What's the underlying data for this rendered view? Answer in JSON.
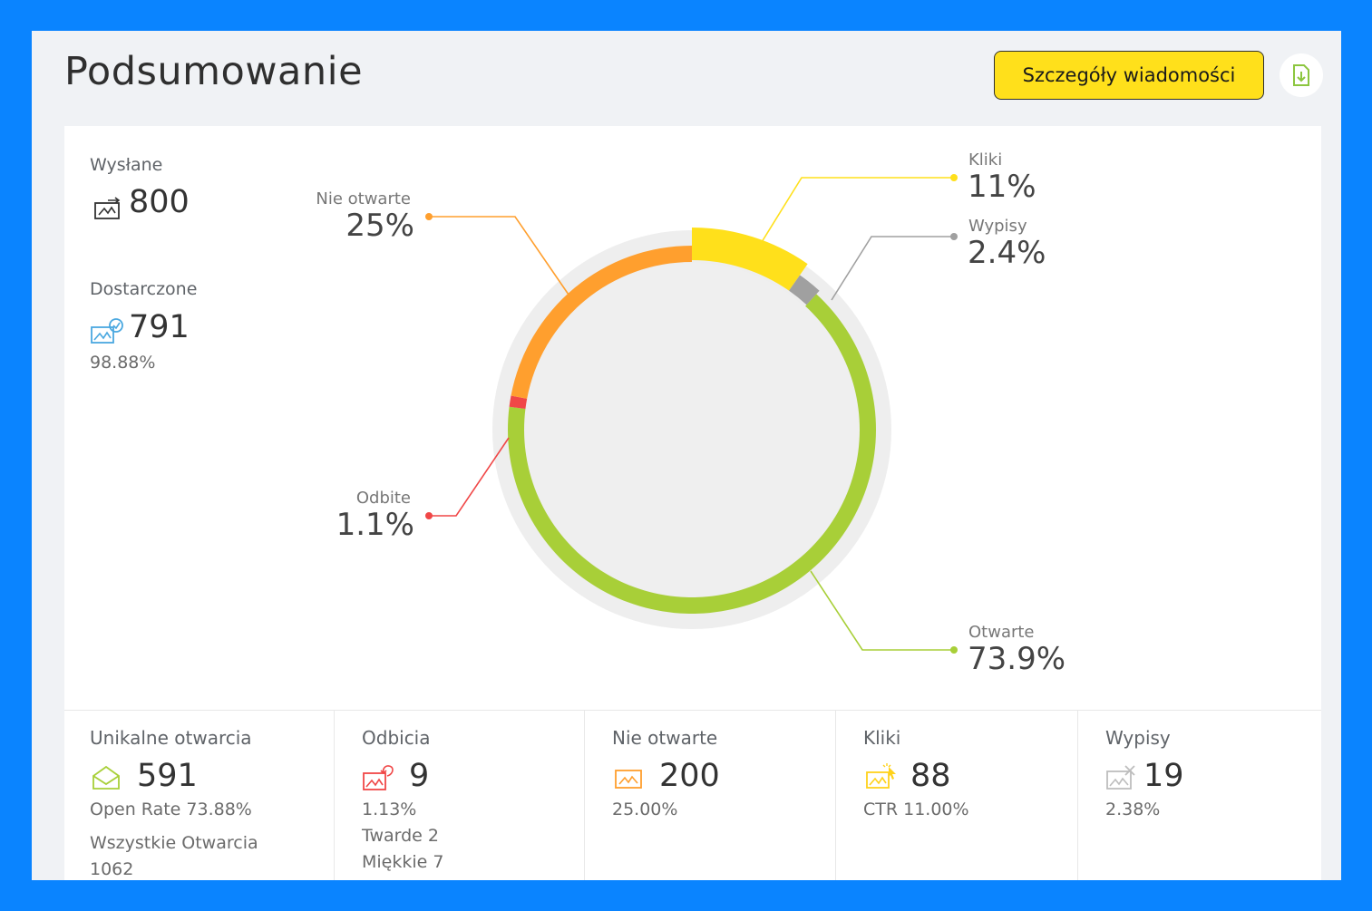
{
  "header": {
    "title": "Podsumowanie",
    "details_button": "Szczegóły wiadomości",
    "download_icon": "download-icon"
  },
  "summary": {
    "sent": {
      "label": "Wysłane",
      "value": "800",
      "icon": "mail-sent-icon"
    },
    "delivered": {
      "label": "Dostarczone",
      "value": "791",
      "percent": "98.88%",
      "icon": "mail-delivered-icon"
    }
  },
  "chart_data": {
    "type": "pie",
    "variant": "donut",
    "slices": [
      {
        "name": "Kliki",
        "label_pct": "11%",
        "value": 11,
        "color": "#ffe01b"
      },
      {
        "name": "Wypisy",
        "label_pct": "2.4%",
        "value": 2.4,
        "color": "#a0a0a0"
      },
      {
        "name": "Otwarte",
        "label_pct": "73.9%",
        "value": 73.9,
        "color": "#a8cf38"
      },
      {
        "name": "Odbite",
        "label_pct": "1.1%",
        "value": 1.1,
        "color": "#f04747"
      },
      {
        "name": "Nie otwarte",
        "label_pct": "25%",
        "value": 25,
        "color": "#ff9f2e"
      }
    ]
  },
  "bottom_stats": [
    {
      "label": "Unikalne otwarcia",
      "value": "591",
      "icon": "envelope-open-icon",
      "lines": [
        "Open Rate 73.88%",
        "Wszystkie Otwarcia",
        "1062"
      ],
      "color": "#a8cf38"
    },
    {
      "label": "Odbicia",
      "value": "9",
      "icon": "mail-bounce-icon",
      "lines": [
        "1.13%",
        "Twarde 2",
        "Miękkie 7"
      ],
      "color": "#f04747"
    },
    {
      "label": "Nie otwarte",
      "value": "200",
      "icon": "mail-closed-icon",
      "lines": [
        "25.00%"
      ],
      "color": "#ff9f2e"
    },
    {
      "label": "Kliki",
      "value": "88",
      "icon": "mail-click-icon",
      "lines": [
        "CTR 11.00%"
      ],
      "color": "#ffd21b"
    },
    {
      "label": "Wypisy",
      "value": "19",
      "icon": "mail-unsubscribe-icon",
      "lines": [
        "2.38%"
      ],
      "color": "#bdbdbd"
    }
  ]
}
